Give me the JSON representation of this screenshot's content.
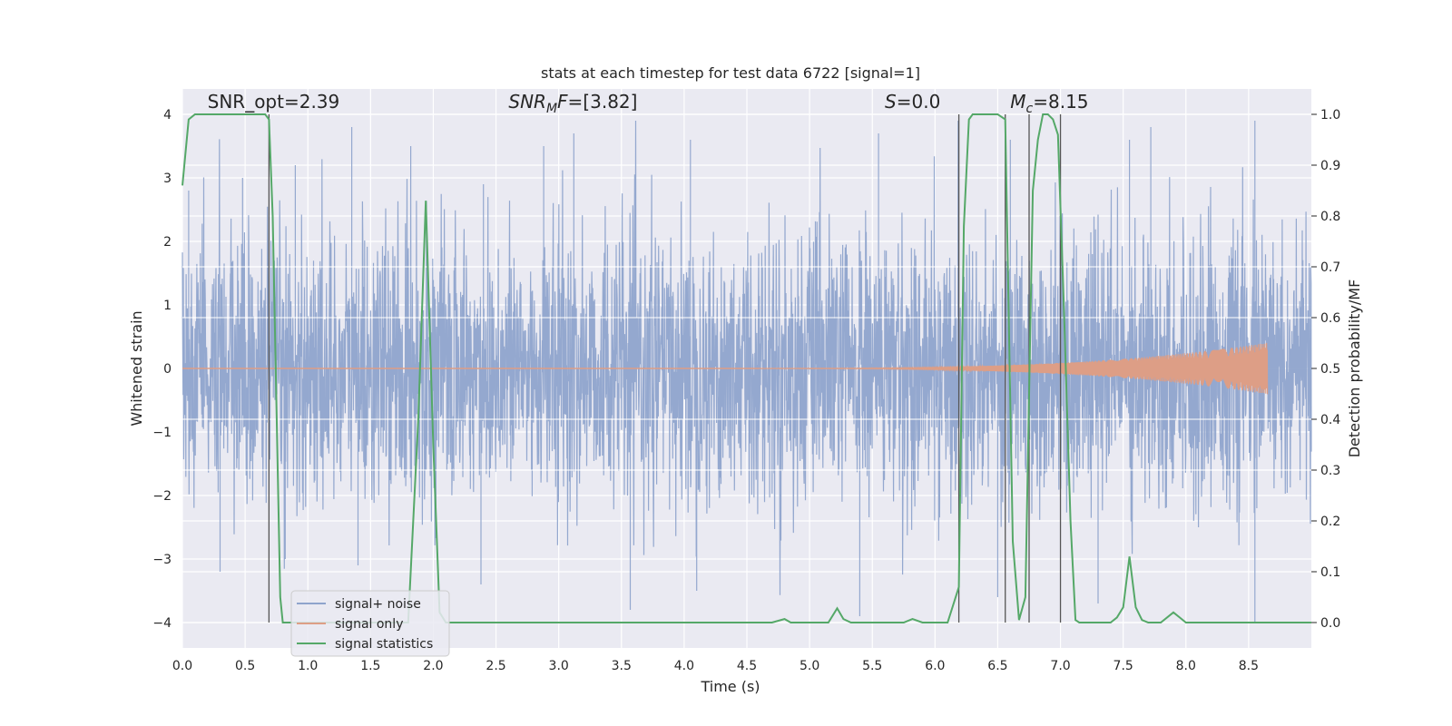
{
  "chart_data": {
    "type": "line",
    "title": "stats at each timestep for test data 6722 [signal=1]",
    "xlabel": "Time (s)",
    "ylabel": "Whitened strain",
    "y2label": "Detection probability/MF",
    "xlim": [
      0.0,
      9.0
    ],
    "ylim": [
      -4.4,
      4.4
    ],
    "y2lim": [
      -0.05,
      1.05
    ],
    "xticks": [
      0.0,
      0.5,
      1.0,
      1.5,
      2.0,
      2.5,
      3.0,
      3.5,
      4.0,
      4.5,
      5.0,
      5.5,
      6.0,
      6.5,
      7.0,
      7.5,
      8.0,
      8.5
    ],
    "xtick_labels": [
      "0.0",
      "0.5",
      "1.0",
      "1.5",
      "2.0",
      "2.5",
      "3.0",
      "3.5",
      "4.0",
      "4.5",
      "5.0",
      "5.5",
      "6.0",
      "6.5",
      "7.0",
      "7.5",
      "8.0",
      "8.5"
    ],
    "yticks": [
      -4,
      -3,
      -2,
      -1,
      0,
      1,
      2,
      3,
      4
    ],
    "ytick_labels": [
      "−4",
      "−3",
      "−2",
      "−1",
      "0",
      "1",
      "2",
      "3",
      "4"
    ],
    "y2ticks": [
      0.0,
      0.1,
      0.2,
      0.3,
      0.4,
      0.5,
      0.6,
      0.7,
      0.8,
      0.9,
      1.0
    ],
    "y2tick_labels": [
      "0.0",
      "0.1",
      "0.2",
      "0.3",
      "0.4",
      "0.5",
      "0.6",
      "0.7",
      "0.8",
      "0.9",
      "1.0"
    ],
    "grid": true,
    "legend_position": "lower-left",
    "annotations": [
      {
        "text": "SNR_opt=2.39",
        "x": 0.2,
        "y": 4.1,
        "italic": false
      },
      {
        "text": "SNR",
        "sub": "M",
        "rest": "F=[3.82]",
        "x": 2.6,
        "y": 4.1,
        "italic": true
      },
      {
        "text": "S",
        "rest": "=0.0",
        "x": 5.6,
        "y": 4.1,
        "italic": true
      },
      {
        "text": "M",
        "sub": "c",
        "rest": "=8.15",
        "x": 6.6,
        "y": 4.1,
        "italic": true
      }
    ],
    "vlines": [
      0.69,
      6.19,
      6.56,
      6.75,
      7.0
    ],
    "series": [
      {
        "name": "signal+ noise",
        "color": "#8fa4cc",
        "style": "noise",
        "x_range": [
          0.0,
          9.0
        ],
        "amplitude_note": "dense whitened noise, roughly within [-4, 3.8]",
        "peaks": [
          [
            0.05,
            2.8
          ],
          [
            0.48,
            3.0
          ],
          [
            0.9,
            3.2
          ],
          [
            1.35,
            3.8
          ],
          [
            1.82,
            3.5
          ],
          [
            2.4,
            2.9
          ],
          [
            2.88,
            3.5
          ],
          [
            3.12,
            3.7
          ],
          [
            4.05,
            3.6
          ],
          [
            5.55,
            3.7
          ],
          [
            6.6,
            3.6
          ],
          [
            7.55,
            3.6
          ],
          [
            7.72,
            3.8
          ],
          [
            8.55,
            3.9
          ]
        ],
        "troughs": [
          [
            0.3,
            -3.2
          ],
          [
            0.82,
            -3.0
          ],
          [
            1.4,
            -3.1
          ],
          [
            2.38,
            -3.4
          ],
          [
            3.57,
            -3.8
          ],
          [
            4.1,
            -3.5
          ],
          [
            5.4,
            -3.9
          ],
          [
            6.5,
            -3.6
          ],
          [
            7.3,
            -3.7
          ],
          [
            8.55,
            -4.0
          ]
        ]
      },
      {
        "name": "signal only",
        "color": "#dd9e86",
        "style": "chirp",
        "chirp_start": 4.6,
        "chirp_end": 8.65,
        "max_amplitude": 0.4
      },
      {
        "name": "signal statistics",
        "color": "#55a868",
        "axis": "right",
        "x": [
          0.0,
          0.05,
          0.1,
          0.2,
          0.3,
          0.4,
          0.5,
          0.6,
          0.66,
          0.69,
          0.72,
          0.78,
          0.8,
          0.9,
          1.0,
          1.5,
          1.7,
          1.8,
          1.88,
          1.94,
          2.0,
          2.05,
          2.1,
          2.2,
          3.0,
          3.85,
          3.9,
          4.5,
          4.7,
          4.8,
          4.85,
          4.9,
          5.15,
          5.22,
          5.27,
          5.33,
          5.4,
          5.5,
          5.75,
          5.82,
          5.9,
          6.0,
          6.1,
          6.19,
          6.23,
          6.27,
          6.3,
          6.35,
          6.5,
          6.56,
          6.62,
          6.67,
          6.72,
          6.78,
          6.82,
          6.86,
          6.9,
          6.94,
          6.98,
          7.03,
          7.08,
          7.12,
          7.15,
          7.2,
          7.4,
          7.45,
          7.5,
          7.55,
          7.6,
          7.65,
          7.7,
          7.8,
          7.9,
          7.95,
          8.0,
          8.05,
          8.5,
          9.0
        ],
        "values": [
          0.86,
          0.99,
          1.0,
          1.0,
          1.0,
          1.0,
          1.0,
          1.0,
          1.0,
          0.99,
          0.8,
          0.05,
          0.0,
          0.0,
          0.0,
          0.0,
          0.0,
          0.0,
          0.4,
          0.83,
          0.35,
          0.02,
          0.0,
          0.0,
          0.0,
          0.0,
          0.0,
          0.0,
          0.0,
          0.007,
          0.0,
          0.0,
          0.0,
          0.028,
          0.007,
          0.0,
          0.0,
          0.0,
          0.0,
          0.007,
          0.0,
          0.0,
          0.0,
          0.07,
          0.78,
          0.99,
          1.0,
          1.0,
          1.0,
          0.99,
          0.16,
          0.005,
          0.05,
          0.85,
          0.95,
          1.0,
          1.0,
          0.99,
          0.96,
          0.6,
          0.2,
          0.005,
          0.0,
          0.0,
          0.0,
          0.01,
          0.03,
          0.13,
          0.03,
          0.005,
          0.0,
          0.0,
          0.02,
          0.01,
          0.0,
          0.0,
          0.0,
          0.0
        ]
      }
    ]
  }
}
